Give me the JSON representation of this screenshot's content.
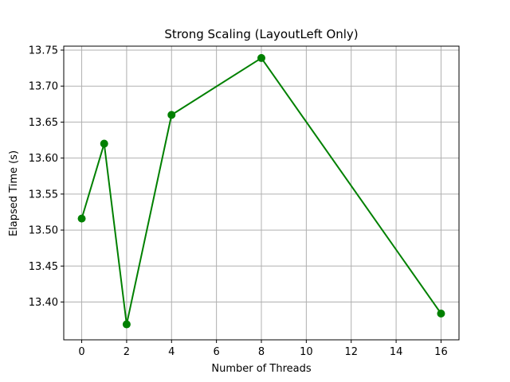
{
  "chart_data": {
    "type": "line",
    "title": "Strong Scaling (LayoutLeft Only)",
    "xlabel": "Number of Threads",
    "ylabel": "Elapsed Time (s)",
    "x": [
      0,
      1,
      2,
      4,
      8,
      16
    ],
    "series": [
      {
        "values": [
          13.516,
          13.62,
          13.369,
          13.66,
          13.739,
          13.384
        ],
        "color": "#008000",
        "marker": "circle"
      }
    ],
    "xlim": [
      -0.8,
      16.8
    ],
    "ylim": [
      13.3475,
      13.7555
    ],
    "xticks": [
      0,
      2,
      4,
      6,
      8,
      10,
      12,
      14,
      16
    ],
    "xtick_labels": [
      "0",
      "2",
      "4",
      "6",
      "8",
      "10",
      "12",
      "14",
      "16"
    ],
    "yticks": [
      13.4,
      13.45,
      13.5,
      13.55,
      13.6,
      13.65,
      13.7,
      13.75
    ],
    "ytick_labels": [
      "13.40",
      "13.45",
      "13.50",
      "13.55",
      "13.60",
      "13.65",
      "13.70",
      "13.75"
    ],
    "grid": true,
    "colors": {
      "grid": "#b0b0b0",
      "axes": "#000000",
      "background": "#ffffff"
    }
  }
}
